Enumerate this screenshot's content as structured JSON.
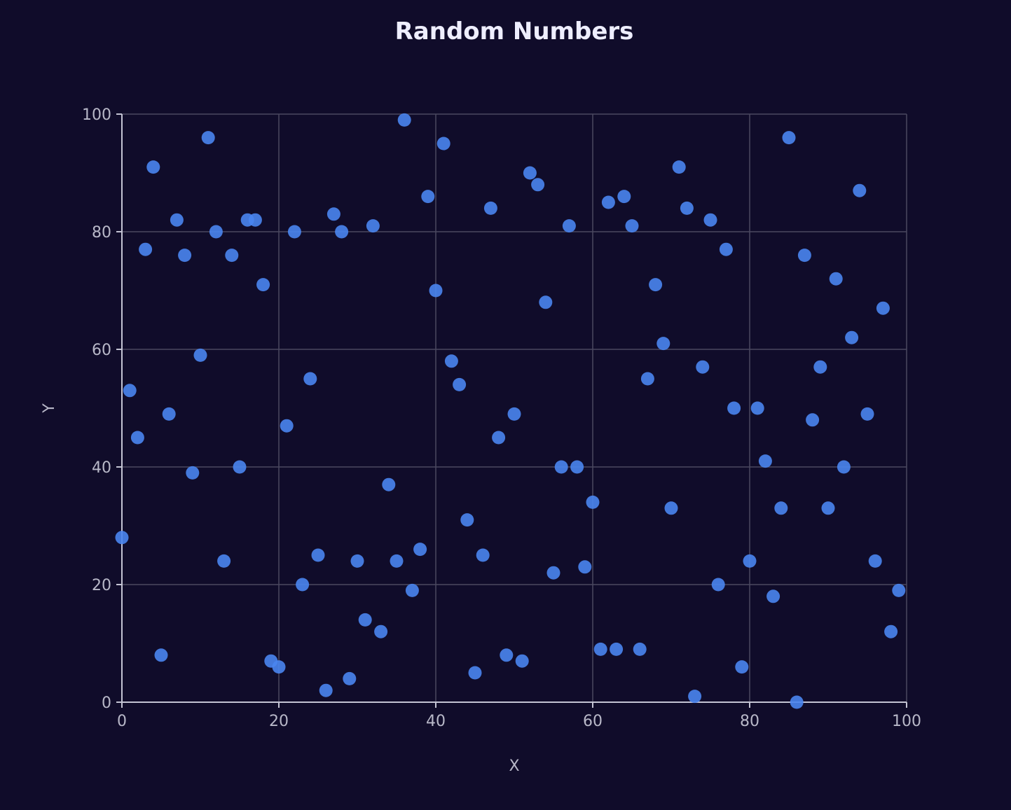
{
  "chart_data": {
    "type": "scatter",
    "title": "Random Numbers",
    "xlabel": "X",
    "ylabel": "Y",
    "xlim": [
      0,
      100
    ],
    "ylim": [
      0,
      100
    ],
    "x_ticks": [
      "0",
      "20",
      "40",
      "60",
      "80",
      "100"
    ],
    "y_ticks": [
      "0",
      "20",
      "40",
      "60",
      "80",
      "100"
    ],
    "grid": true,
    "legend": "none",
    "colors": {
      "background": "#100c2a",
      "point": "#4a85f0",
      "grid": "#4a4860",
      "axis": "#c4c4d4",
      "text": "#b8b8c8",
      "title": "#eeeeff"
    },
    "series": [
      {
        "x": [
          0,
          1,
          2,
          3,
          4,
          5,
          6,
          7,
          8,
          9,
          10,
          11,
          12,
          13,
          14,
          15,
          16,
          17,
          18,
          19,
          20,
          21,
          22,
          23,
          24,
          25,
          26,
          27,
          28,
          29,
          30,
          31,
          32,
          33,
          34,
          35,
          36,
          37,
          38,
          39,
          40,
          41,
          42,
          43,
          44,
          45,
          46,
          47,
          48,
          49,
          50,
          51,
          52,
          53,
          54,
          55,
          56,
          57,
          58,
          59,
          60,
          61,
          62,
          63,
          64,
          65,
          66,
          67,
          68,
          69,
          70,
          71,
          72,
          73,
          74,
          75,
          76,
          77,
          78,
          79,
          80,
          81,
          82,
          83,
          84,
          85,
          86,
          87,
          88,
          89,
          90,
          91,
          92,
          93,
          94,
          95,
          96,
          97,
          98,
          99
        ],
        "y": [
          28,
          53,
          45,
          77,
          91,
          8,
          49,
          82,
          76,
          39,
          59,
          96,
          80,
          24,
          76,
          40,
          82,
          82,
          71,
          7,
          6,
          47,
          80,
          20,
          55,
          25,
          2,
          83,
          80,
          4,
          24,
          14,
          81,
          12,
          37,
          24,
          99,
          19,
          26,
          86,
          70,
          95,
          58,
          54,
          31,
          5,
          25,
          84,
          45,
          8,
          49,
          7,
          90,
          88,
          68,
          22,
          40,
          81,
          40,
          23,
          34,
          9,
          85,
          9,
          86,
          81,
          9,
          55,
          71,
          61,
          33,
          91,
          84,
          1,
          57,
          82,
          20,
          77,
          50,
          6,
          24,
          50,
          41,
          18,
          33,
          96,
          0,
          76,
          48,
          57,
          33,
          72,
          40,
          62,
          87,
          49,
          24,
          67,
          12,
          19
        ]
      }
    ]
  }
}
